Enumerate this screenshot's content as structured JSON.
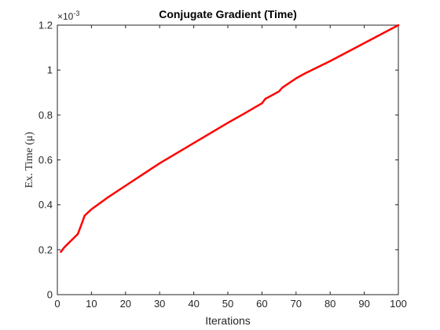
{
  "chart_data": {
    "type": "line",
    "title": "Conjugate Gradient (Time)",
    "xlabel": "Iterations",
    "ylabel": "Ex. Time (μ)",
    "y_multiplier": "×10",
    "y_multiplier_exp": "-3",
    "xlim": [
      0,
      100
    ],
    "ylim": [
      0,
      1.2
    ],
    "x_ticks": [
      0,
      10,
      20,
      30,
      40,
      50,
      60,
      70,
      80,
      90,
      100
    ],
    "x_tick_labels": [
      "0",
      "10",
      "20",
      "30",
      "40",
      "50",
      "60",
      "70",
      "80",
      "90",
      "100"
    ],
    "y_ticks": [
      0,
      0.2,
      0.4,
      0.6,
      0.8,
      1.0,
      1.2
    ],
    "y_tick_labels": [
      "0",
      "0.2",
      "0.4",
      "0.6",
      "0.8",
      "1",
      "1.2"
    ],
    "grid": false,
    "series": [
      {
        "color": "#ff0000",
        "x": [
          1,
          2,
          3,
          4,
          5,
          6,
          7,
          8,
          10,
          15,
          20,
          25,
          30,
          35,
          40,
          45,
          50,
          55,
          60,
          61,
          62,
          65,
          66,
          70,
          72,
          73,
          80,
          90,
          100
        ],
        "y": [
          0.19,
          0.21,
          0.225,
          0.24,
          0.255,
          0.27,
          0.31,
          0.352,
          0.38,
          0.435,
          0.485,
          0.535,
          0.585,
          0.63,
          0.675,
          0.72,
          0.765,
          0.808,
          0.852,
          0.872,
          0.88,
          0.905,
          0.922,
          0.963,
          0.98,
          0.988,
          1.04,
          1.12,
          1.2
        ]
      }
    ]
  }
}
